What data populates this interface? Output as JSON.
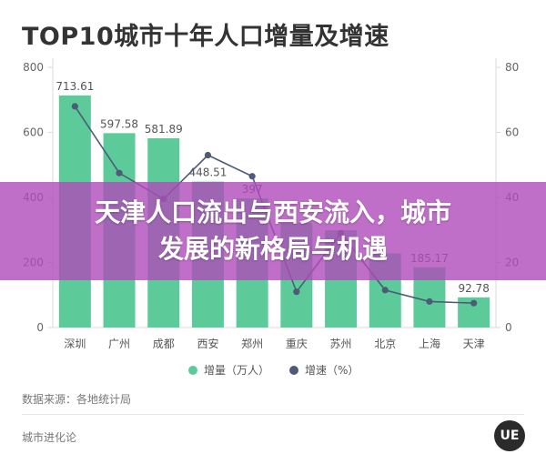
{
  "chart_data": {
    "type": "bar",
    "title": "TOP10城市十年人口增量及增速",
    "categories": [
      "深圳",
      "广州",
      "成都",
      "西安",
      "郑州",
      "重庆",
      "苏州",
      "北京",
      "上海",
      "天津"
    ],
    "series": [
      {
        "name": "增量（万人）",
        "kind": "bar",
        "axis": "left",
        "values": [
          713.61,
          597.58,
          581.89,
          448.51,
          397,
          321,
          299,
          228,
          185.17,
          92.78
        ],
        "labels": [
          "713.61",
          "597.58",
          "581.89",
          "448.51",
          "397",
          "",
          "",
          "",
          "185.17",
          "92.78"
        ]
      },
      {
        "name": "增速（%）",
        "kind": "line",
        "axis": "right",
        "values": [
          68,
          47.5,
          39.5,
          53,
          46.5,
          11,
          29,
          11.5,
          8,
          7.5
        ]
      }
    ],
    "y_left": {
      "min": 0,
      "max": 800,
      "ticks": [
        0,
        200,
        400,
        600,
        800
      ]
    },
    "y_right": {
      "min": 0,
      "max": 80,
      "ticks": [
        0,
        20,
        40,
        60,
        80
      ]
    },
    "legend_position": "bottom",
    "grid": false,
    "colors": {
      "bar": "#5ccb99",
      "line": "#4e5b78"
    }
  },
  "source": "数据来源：各地统计局",
  "brand": "城市进化论",
  "logo_text": "UE",
  "overlay": {
    "line1": "天津人口流出与西安流入，城市",
    "line2": "发展的新格局与机遇"
  }
}
